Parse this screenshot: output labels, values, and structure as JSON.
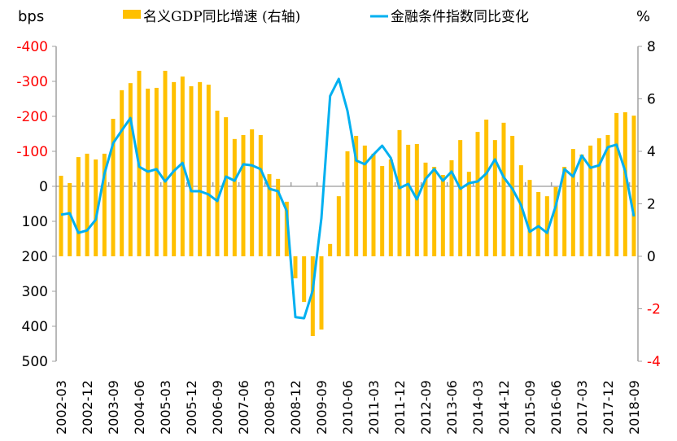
{
  "chart_data": {
    "type": "bar+line",
    "title": "",
    "left_axis": {
      "unit_label": "bps",
      "range": [
        -400,
        500
      ],
      "inverted": true,
      "ticks": [
        -400,
        -300,
        -200,
        -100,
        0,
        100,
        200,
        300,
        400,
        500
      ],
      "tick_labels": [
        "-400",
        "-300",
        "-200",
        "-100",
        "0",
        "100",
        "200",
        "300",
        "400",
        "500"
      ],
      "negative_tick_color": "#ff0000"
    },
    "right_axis": {
      "unit_label": "%",
      "range": [
        -4,
        8
      ],
      "ticks": [
        8,
        6,
        4,
        2,
        0,
        -2,
        -4
      ],
      "tick_labels": [
        "8",
        "6",
        "4",
        "2",
        "0",
        "-2",
        "-4"
      ],
      "negative_tick_color": "#ff0000"
    },
    "x_tick_labels": [
      "2002-03",
      "2002-12",
      "2003-09",
      "2004-06",
      "2005-03",
      "2005-12",
      "2006-09",
      "2007-06",
      "2008-03",
      "2008-12",
      "2009-09",
      "2010-06",
      "2011-03",
      "2011-12",
      "2012-09",
      "2013-06",
      "2014-03",
      "2014-12",
      "2015-09",
      "2016-06",
      "2017-03",
      "2017-12",
      "2018-09"
    ],
    "x_tick_every": 3,
    "legend_position": "top",
    "series": [
      {
        "name": "名义GDP同比增速（右轴）",
        "legend_label": "名义GDP同比增速 (右轴)",
        "type": "bar",
        "axis": "right",
        "color": "#ffc000",
        "values": [
          3.07,
          2.79,
          3.78,
          3.91,
          3.69,
          3.91,
          5.24,
          6.33,
          6.6,
          7.07,
          6.39,
          6.42,
          7.07,
          6.64,
          6.85,
          6.48,
          6.64,
          6.54,
          5.55,
          5.3,
          4.47,
          4.62,
          4.84,
          4.62,
          3.13,
          2.95,
          2.08,
          -0.84,
          -1.74,
          -3.04,
          -2.79,
          0.47,
          2.29,
          4.0,
          4.59,
          4.22,
          3.91,
          3.44,
          3.69,
          4.81,
          4.25,
          4.28,
          3.57,
          3.41,
          3.1,
          3.66,
          4.43,
          3.22,
          4.74,
          5.21,
          4.43,
          5.09,
          4.59,
          3.47,
          2.91,
          2.45,
          2.29,
          2.64,
          3.41,
          4.09,
          3.88,
          4.22,
          4.5,
          4.62,
          5.46,
          5.49,
          5.36
        ]
      },
      {
        "name": "金融条件指数同比变化",
        "legend_label": "金融条件指数同比变化",
        "type": "line",
        "axis": "left",
        "color": "#00b0f0",
        "values": [
          81,
          77,
          133,
          126,
          95,
          -35,
          -123,
          -160,
          -195,
          -56,
          -42,
          -49,
          -14,
          -44,
          -67,
          14,
          14,
          23,
          42,
          -28,
          -16,
          -63,
          -60,
          -49,
          7,
          14,
          70,
          374,
          377,
          298,
          91,
          -258,
          -307,
          -216,
          -74,
          -63,
          -91,
          -116,
          -81,
          5,
          -7,
          37,
          -21,
          -49,
          -16,
          -42,
          7,
          -9,
          -14,
          -37,
          -77,
          -26,
          7,
          53,
          130,
          114,
          133,
          56,
          -49,
          -28,
          -88,
          -53,
          -60,
          -112,
          -119,
          -44,
          86
        ]
      }
    ]
  }
}
